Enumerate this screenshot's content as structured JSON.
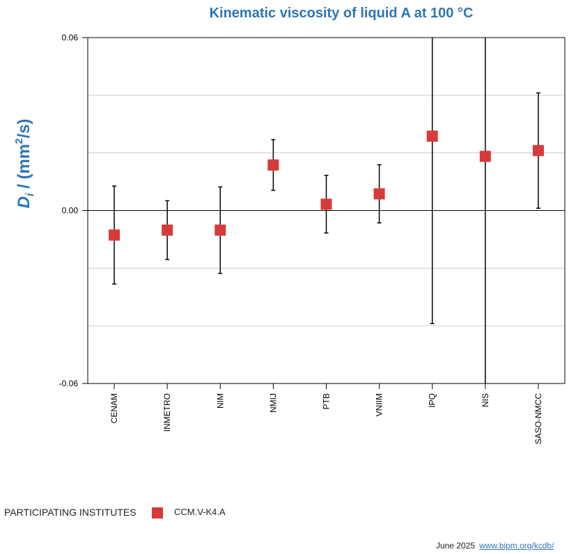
{
  "chart_data": {
    "type": "scatter",
    "title": "Kinematic viscosity of liquid A at 100 °C",
    "ylabel_main": "D",
    "ylabel_sub": "i",
    "ylabel_unit_prefix": " / (mm",
    "ylabel_unit_sup": "2",
    "ylabel_unit_suffix": "/s)",
    "ylim": [
      -0.06,
      0.06
    ],
    "ytick_labels": [
      "0.06",
      "0.00",
      "-0.06"
    ],
    "ytick_values": [
      0.06,
      0.0,
      -0.06
    ],
    "grid": true,
    "categories": [
      "CENAM",
      "INMETRO",
      "NIM",
      "NMIJ",
      "PTB",
      "VNIIM",
      "IPQ",
      "NIS",
      "SASO-NMCC"
    ],
    "series": [
      {
        "name": "CCM.V-K4.A",
        "color": "#d63a3a",
        "values": [
          -0.0085,
          -0.0068,
          -0.0068,
          0.0158,
          0.0022,
          0.0058,
          0.0258,
          0.0188,
          0.0208
        ],
        "uncertainty": [
          0.017,
          0.0102,
          0.015,
          0.0088,
          0.01,
          0.0101,
          0.065,
          0.079,
          0.02
        ]
      }
    ],
    "legend_placement": "bottom-left"
  },
  "legend": {
    "heading": "PARTICIPATING INSTITUTES",
    "series_label": "CCM.V-K4.A"
  },
  "footer": {
    "date": "June 2025",
    "link": "www.bipm.org/kcdb/"
  }
}
